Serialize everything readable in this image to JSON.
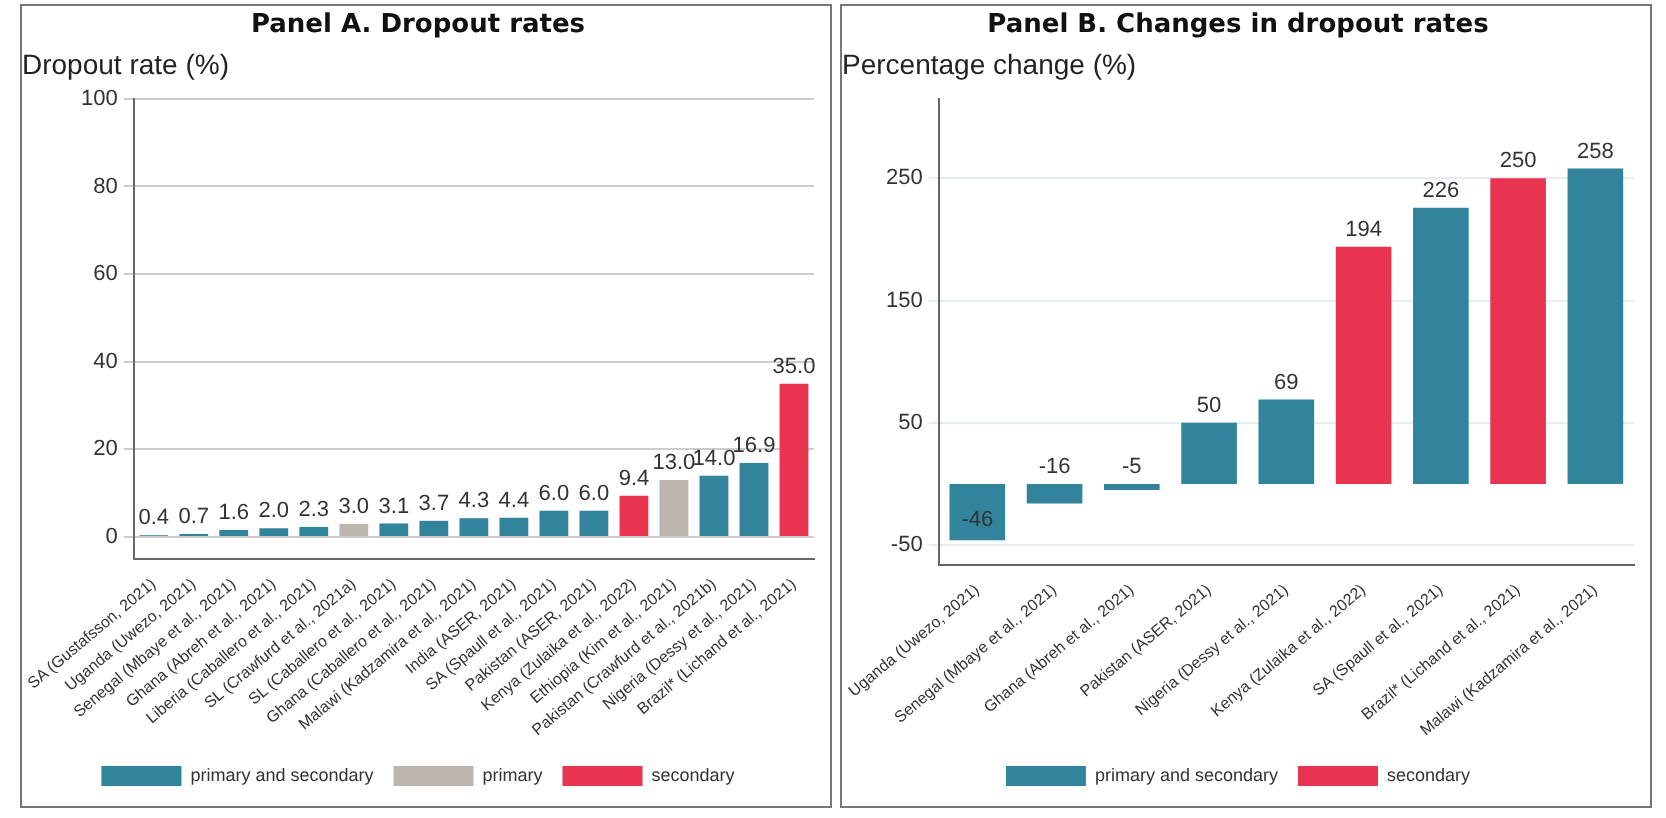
{
  "chart_data": [
    {
      "type": "bar",
      "title": "Panel A. Dropout rates",
      "ylabel": "Dropout rate (%)",
      "categories": [
        "SA (Gustafsson, 2021)",
        "Uganda (Uwezo, 2021)",
        "Senegal (Mbaye et al., 2021)",
        "Ghana (Abreh et al., 2021)",
        "Liberia (Caballero et al., 2021)",
        "SL (Crawfurd et al., 2021a)",
        "SL (Caballero et al., 2021)",
        "Ghana (Caballero et al., 2021)",
        "Malawi (Kadzamira et al., 2021)",
        "India (ASER, 2021)",
        "SA (Spaull et al., 2021)",
        "Pakistan (ASER, 2021)",
        "Kenya (Zulaika et al., 2022)",
        "Ethiopia (Kim et al., 2021)",
        "Pakistan (Crawfurd et al., 2021b)",
        "Nigeria (Dessy et al., 2021)",
        "Brazil* (Lichand et al., 2021)"
      ],
      "series": [
        {
          "name": "primary and secondary",
          "color": "#31849b",
          "values": [
            0.4,
            0.7,
            1.6,
            2.0,
            2.3,
            null,
            3.1,
            3.7,
            4.3,
            4.4,
            6.0,
            6.0,
            null,
            null,
            14.0,
            16.9,
            null
          ],
          "value_labels": [
            "0.4",
            "0.7",
            "1.6",
            "2.0",
            "2.3",
            null,
            "3.1",
            "3.7",
            "4.3",
            "4.4",
            "6.0",
            "6.0",
            null,
            null,
            "14.0",
            "16.9",
            null
          ]
        },
        {
          "name": "primary",
          "color": "#bdb6ae",
          "values": [
            null,
            null,
            null,
            null,
            null,
            3.0,
            null,
            null,
            null,
            null,
            null,
            null,
            null,
            13.0,
            null,
            null,
            null
          ],
          "value_labels": [
            null,
            null,
            null,
            null,
            null,
            "3.0",
            null,
            null,
            null,
            null,
            null,
            null,
            null,
            "13.0",
            null,
            null,
            null
          ]
        },
        {
          "name": "secondary",
          "color": "#e8344f",
          "values": [
            null,
            null,
            null,
            null,
            null,
            null,
            null,
            null,
            null,
            null,
            null,
            null,
            9.4,
            null,
            null,
            null,
            35.0
          ],
          "value_labels": [
            null,
            null,
            null,
            null,
            null,
            null,
            null,
            null,
            null,
            null,
            null,
            null,
            "9.4",
            null,
            null,
            null,
            "35.0"
          ]
        }
      ],
      "ylim": [
        -5,
        100
      ],
      "yticks": [
        0,
        20,
        40,
        60,
        80,
        100
      ],
      "grid": "y",
      "legend": "bottom"
    },
    {
      "type": "bar",
      "title": "Panel B. Changes in dropout rates",
      "ylabel": "Percentage change (%)",
      "categories": [
        "Uganda (Uwezo, 2021)",
        "Senegal (Mbaye et al., 2021)",
        "Ghana (Abreh et al., 2021)",
        "Pakistan (ASER, 2021)",
        "Nigeria (Dessy et al., 2021)",
        "Kenya (Zulaika et al., 2022)",
        "SA (Spaull et al., 2021)",
        "Brazil* (Lichand et al., 2021)",
        "Malawi (Kadzamira et al., 2021)"
      ],
      "series": [
        {
          "name": "primary and secondary",
          "color": "#31849b",
          "values": [
            -46,
            -16,
            -5,
            50,
            69,
            null,
            226,
            null,
            258
          ]
        },
        {
          "name": "secondary",
          "color": "#e8344f",
          "values": [
            null,
            null,
            null,
            null,
            null,
            194,
            null,
            250,
            null
          ]
        }
      ],
      "ylim": [
        -66,
        315
      ],
      "yticks": [
        -50,
        50,
        150,
        250
      ],
      "grid": "y",
      "legend": "bottom",
      "data_labels": true
    }
  ]
}
